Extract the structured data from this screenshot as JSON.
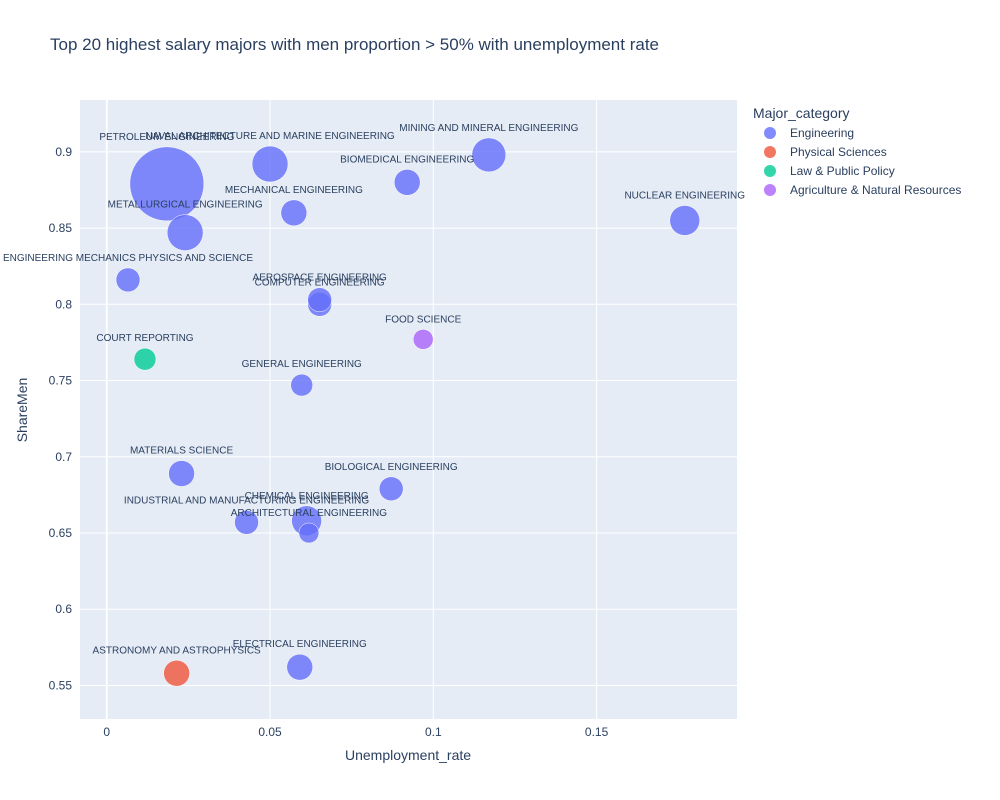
{
  "chart_data": {
    "type": "scatter",
    "title": "Top 20 highest salary majors with men proportion > 50% with unemployment rate",
    "xlabel": "Unemployment_rate",
    "ylabel": "ShareMen",
    "xlim": [
      -0.0082,
      0.193
    ],
    "ylim": [
      0.528,
      0.934
    ],
    "x_ticks": [
      0,
      0.05,
      0.1,
      0.15
    ],
    "x_tick_labels": [
      "0",
      "0.05",
      "0.1",
      "0.15"
    ],
    "y_ticks": [
      0.55,
      0.6,
      0.65,
      0.7,
      0.75,
      0.8,
      0.85,
      0.9
    ],
    "y_tick_labels": [
      "0.55",
      "0.6",
      "0.65",
      "0.7",
      "0.75",
      "0.8",
      "0.85",
      "0.9"
    ],
    "legend": {
      "title": "Major_category",
      "placement": "top-right-outside",
      "entries": [
        {
          "name": "Engineering",
          "color": "#636efa"
        },
        {
          "name": "Physical Sciences",
          "color": "#ef553b"
        },
        {
          "name": "Law & Public Policy",
          "color": "#00cc96"
        },
        {
          "name": "Agriculture & Natural Resources",
          "color": "#ab63fa"
        }
      ]
    },
    "points": [
      {
        "label": "PETROLEUM ENGINEERING",
        "x": 0.0184,
        "y": 0.879,
        "size": 37,
        "category": "Engineering"
      },
      {
        "label": "MINING AND MINERAL ENGINEERING",
        "x": 0.117,
        "y": 0.898,
        "size": 17,
        "category": "Engineering"
      },
      {
        "label": "METALLURGICAL ENGINEERING",
        "x": 0.024,
        "y": 0.847,
        "size": 18,
        "category": "Engineering"
      },
      {
        "label": "NAVAL ARCHITECTURE AND MARINE ENGINEERING",
        "x": 0.05,
        "y": 0.892,
        "size": 18,
        "category": "Engineering"
      },
      {
        "label": "CHEMICAL ENGINEERING",
        "x": 0.0612,
        "y": 0.658,
        "size": 15,
        "category": "Engineering"
      },
      {
        "label": "NUCLEAR ENGINEERING",
        "x": 0.177,
        "y": 0.855,
        "size": 15,
        "category": "Engineering"
      },
      {
        "label": "ASTRONOMY AND ASTROPHYSICS",
        "x": 0.0214,
        "y": 0.558,
        "size": 13,
        "category": "Physical Sciences"
      },
      {
        "label": "MECHANICAL ENGINEERING",
        "x": 0.0573,
        "y": 0.86,
        "size": 13,
        "category": "Engineering"
      },
      {
        "label": "ELECTRICAL ENGINEERING",
        "x": 0.0591,
        "y": 0.562,
        "size": 13,
        "category": "Engineering"
      },
      {
        "label": "COMPUTER ENGINEERING",
        "x": 0.0652,
        "y": 0.8,
        "size": 12,
        "category": "Engineering"
      },
      {
        "label": "AEROSPACE ENGINEERING",
        "x": 0.0652,
        "y": 0.803,
        "size": 12,
        "category": "Engineering"
      },
      {
        "label": "BIOMEDICAL ENGINEERING",
        "x": 0.092,
        "y": 0.88,
        "size": 13,
        "category": "Engineering"
      },
      {
        "label": "MATERIALS SCIENCE",
        "x": 0.0229,
        "y": 0.689,
        "size": 13,
        "category": "Engineering"
      },
      {
        "label": "ENGINEERING MECHANICS PHYSICS AND SCIENCE",
        "x": 0.0065,
        "y": 0.816,
        "size": 12,
        "category": "Engineering"
      },
      {
        "label": "BIOLOGICAL ENGINEERING",
        "x": 0.0871,
        "y": 0.679,
        "size": 12,
        "category": "Engineering"
      },
      {
        "label": "INDUSTRIAL AND MANUFACTURING ENGINEERING",
        "x": 0.0428,
        "y": 0.657,
        "size": 12,
        "category": "Engineering"
      },
      {
        "label": "GENERAL ENGINEERING",
        "x": 0.0597,
        "y": 0.747,
        "size": 11,
        "category": "Engineering"
      },
      {
        "label": "ARCHITECTURAL ENGINEERING",
        "x": 0.0619,
        "y": 0.65,
        "size": 10,
        "category": "Engineering"
      },
      {
        "label": "COURT REPORTING",
        "x": 0.0117,
        "y": 0.764,
        "size": 11,
        "category": "Law & Public Policy"
      },
      {
        "label": "FOOD SCIENCE",
        "x": 0.0969,
        "y": 0.777,
        "size": 10,
        "category": "Agriculture & Natural Resources"
      }
    ]
  }
}
